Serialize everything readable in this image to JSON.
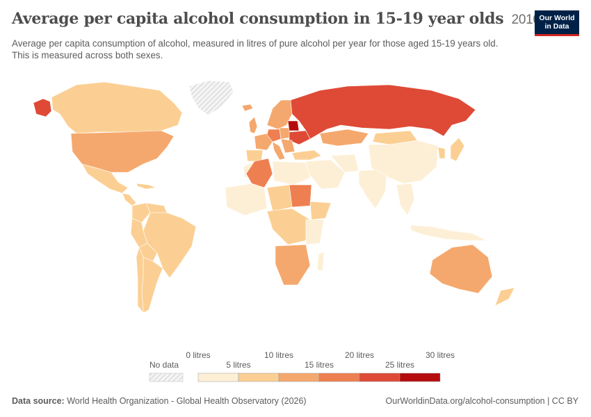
{
  "header": {
    "title": "Average per capita alcohol consumption in 15-19 year olds",
    "year": "2010",
    "subtitle": "Average per capita consumption of alcohol, measured in litres of pure alcohol per year for those aged 15-19 years old. This is measured across both sexes."
  },
  "logo": {
    "line1": "Our World",
    "line2": "in Data"
  },
  "legend": {
    "no_data_label": "No data",
    "bins": [
      {
        "from": 0,
        "to": 5,
        "color": "#fdefd6"
      },
      {
        "from": 5,
        "to": 10,
        "color": "#fbcf93"
      },
      {
        "from": 10,
        "to": 15,
        "color": "#f5a86d"
      },
      {
        "from": 15,
        "to": 20,
        "color": "#ee7f50"
      },
      {
        "from": 20,
        "to": 25,
        "color": "#de4a36"
      },
      {
        "from": 25,
        "to": 30,
        "color": "#b50d0d"
      }
    ],
    "ticks": [
      "0 litres",
      "5 litres",
      "10 litres",
      "15 litres",
      "20 litres",
      "25 litres",
      "30 litres"
    ]
  },
  "footer": {
    "source_label": "Data source:",
    "source_text": "World Health Organization - Global Health Observatory (2026)",
    "url_text": "OurWorldinData.org/alcohol-consumption | CC BY"
  },
  "colors": {
    "title": "#4d4d4d",
    "logo_bg": "#002147",
    "logo_accent": "#ce261e",
    "no_data_hatch": "#c8c8c8"
  }
}
